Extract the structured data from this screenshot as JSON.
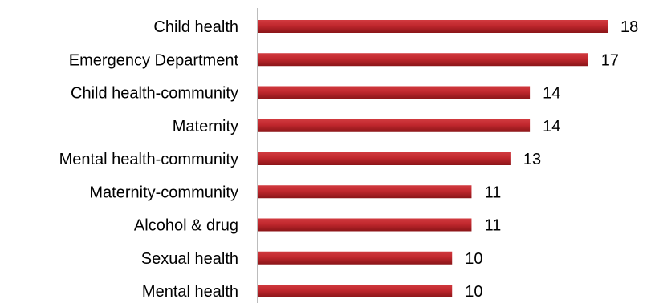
{
  "chart_data": {
    "type": "bar",
    "orientation": "horizontal",
    "categories": [
      "Child health",
      "Emergency Department",
      "Child health-community",
      "Maternity",
      "Mental health-community",
      "Maternity-community",
      "Alcohol & drug",
      "Sexual health",
      "Mental health"
    ],
    "values": [
      18,
      17,
      14,
      14,
      13,
      11,
      11,
      10,
      10
    ],
    "data_labels": [
      "18",
      "17",
      "14",
      "14",
      "13",
      "11",
      "11",
      "10",
      "10"
    ],
    "title": "",
    "xlabel": "",
    "ylabel": "",
    "xlim": [
      0,
      18
    ],
    "grid": false,
    "legend": "none",
    "bar_color": "#c0272d",
    "bar_color_dark": "#8a1518",
    "axis_color": "#a6a6a6"
  }
}
